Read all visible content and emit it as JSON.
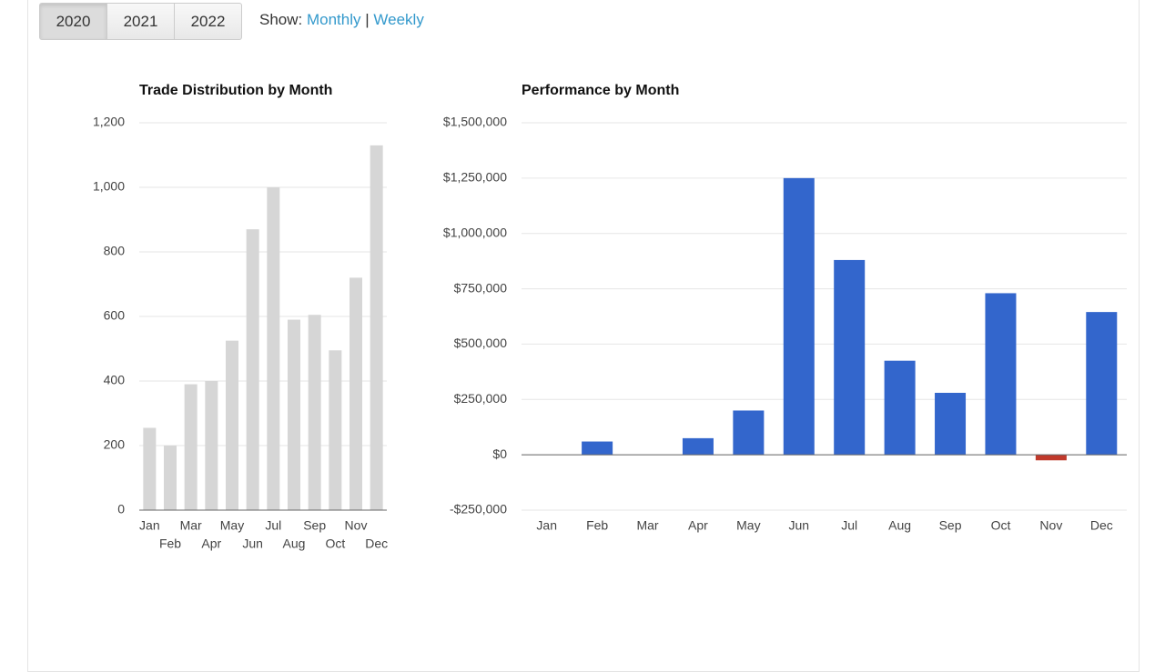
{
  "toolbar": {
    "years": [
      "2020",
      "2021",
      "2022"
    ],
    "show_label": "Show:",
    "links": [
      "Monthly",
      "Weekly"
    ],
    "separator": "|"
  },
  "chart_data": [
    {
      "type": "bar",
      "title": "Trade Distribution by Month",
      "categories": [
        "Jan",
        "Feb",
        "Mar",
        "Apr",
        "May",
        "Jun",
        "Jul",
        "Aug",
        "Sep",
        "Oct",
        "Nov",
        "Dec"
      ],
      "values": [
        255,
        200,
        390,
        400,
        525,
        870,
        1000,
        590,
        605,
        495,
        720,
        1130
      ],
      "color": "#d6d6d6",
      "ylim": [
        0,
        1200
      ],
      "yticks": [
        0,
        200,
        400,
        600,
        800,
        {
          "value": 1000,
          "label": "1,000"
        },
        {
          "value": 1200,
          "label": "1,200"
        }
      ],
      "grid": true
    },
    {
      "type": "bar",
      "title": "Performance by Month",
      "categories": [
        "Jan",
        "Feb",
        "Mar",
        "Apr",
        "May",
        "Jun",
        "Jul",
        "Aug",
        "Sep",
        "Oct",
        "Nov",
        "Dec"
      ],
      "values": [
        0,
        60000,
        0,
        75000,
        200000,
        1250000,
        880000,
        425000,
        280000,
        730000,
        -25000,
        645000
      ],
      "color": "#3366cc",
      "negative_color": "#c0392b",
      "ylim": [
        -250000,
        1500000
      ],
      "yticks": [
        {
          "value": -250000,
          "label": "-$250,000"
        },
        {
          "value": 0,
          "label": "$0"
        },
        {
          "value": 250000,
          "label": "$250,000"
        },
        {
          "value": 500000,
          "label": "$500,000"
        },
        {
          "value": 750000,
          "label": "$750,000"
        },
        {
          "value": 1000000,
          "label": "$1,000,000"
        },
        {
          "value": 1250000,
          "label": "$1,250,000"
        },
        {
          "value": 1500000,
          "label": "$1,500,000"
        }
      ],
      "grid": true
    }
  ]
}
